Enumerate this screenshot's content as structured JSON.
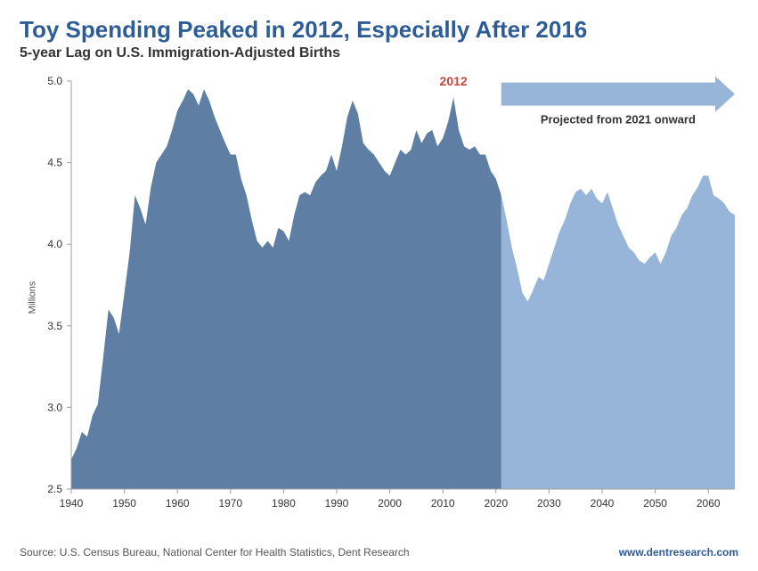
{
  "header": {
    "title": "Toy Spending Peaked in 2012, Especially After 2016",
    "subtitle": "5-year Lag on U.S. Immigration-Adjusted  Births"
  },
  "chart": {
    "type": "area",
    "ylabel": "Millions",
    "ylim": [
      2.5,
      5.0
    ],
    "ytick_step": 0.5,
    "xlim": [
      1940,
      2065
    ],
    "xtick_start": 1940,
    "xtick_step": 10,
    "xtick_end": 2060,
    "tick_fontsize": 12,
    "tick_color": "#333333",
    "axis_color": "#9aa0a6",
    "axis_width": 1,
    "background_color": "#ffffff",
    "split_year": 2021,
    "historical_color": "#5e7ea3",
    "projected_color": "#97b5d9",
    "annotation": {
      "label": "2012",
      "year": 2012,
      "color": "#c2463a",
      "fontsize": 14,
      "fontweight": "700"
    },
    "projection_label": {
      "text": "Projected from 2021 onward",
      "color": "#333333",
      "fontsize": 13,
      "fontweight": "700"
    },
    "arrow": {
      "color": "#97b5d9",
      "y_value": 4.92
    },
    "series": [
      {
        "x": 1940,
        "y": 2.68
      },
      {
        "x": 1941,
        "y": 2.75
      },
      {
        "x": 1942,
        "y": 2.85
      },
      {
        "x": 1943,
        "y": 2.82
      },
      {
        "x": 1944,
        "y": 2.95
      },
      {
        "x": 1945,
        "y": 3.02
      },
      {
        "x": 1946,
        "y": 3.3
      },
      {
        "x": 1947,
        "y": 3.6
      },
      {
        "x": 1948,
        "y": 3.55
      },
      {
        "x": 1949,
        "y": 3.45
      },
      {
        "x": 1950,
        "y": 3.7
      },
      {
        "x": 1951,
        "y": 3.95
      },
      {
        "x": 1952,
        "y": 4.3
      },
      {
        "x": 1953,
        "y": 4.22
      },
      {
        "x": 1954,
        "y": 4.12
      },
      {
        "x": 1955,
        "y": 4.35
      },
      {
        "x": 1956,
        "y": 4.5
      },
      {
        "x": 1957,
        "y": 4.55
      },
      {
        "x": 1958,
        "y": 4.6
      },
      {
        "x": 1959,
        "y": 4.7
      },
      {
        "x": 1960,
        "y": 4.82
      },
      {
        "x": 1961,
        "y": 4.88
      },
      {
        "x": 1962,
        "y": 4.95
      },
      {
        "x": 1963,
        "y": 4.92
      },
      {
        "x": 1964,
        "y": 4.85
      },
      {
        "x": 1965,
        "y": 4.95
      },
      {
        "x": 1966,
        "y": 4.88
      },
      {
        "x": 1967,
        "y": 4.78
      },
      {
        "x": 1968,
        "y": 4.7
      },
      {
        "x": 1969,
        "y": 4.62
      },
      {
        "x": 1970,
        "y": 4.55
      },
      {
        "x": 1971,
        "y": 4.55
      },
      {
        "x": 1972,
        "y": 4.4
      },
      {
        "x": 1973,
        "y": 4.3
      },
      {
        "x": 1974,
        "y": 4.15
      },
      {
        "x": 1975,
        "y": 4.02
      },
      {
        "x": 1976,
        "y": 3.98
      },
      {
        "x": 1977,
        "y": 4.02
      },
      {
        "x": 1978,
        "y": 3.98
      },
      {
        "x": 1979,
        "y": 4.1
      },
      {
        "x": 1980,
        "y": 4.08
      },
      {
        "x": 1981,
        "y": 4.02
      },
      {
        "x": 1982,
        "y": 4.18
      },
      {
        "x": 1983,
        "y": 4.3
      },
      {
        "x": 1984,
        "y": 4.32
      },
      {
        "x": 1985,
        "y": 4.3
      },
      {
        "x": 1986,
        "y": 4.38
      },
      {
        "x": 1987,
        "y": 4.42
      },
      {
        "x": 1988,
        "y": 4.45
      },
      {
        "x": 1989,
        "y": 4.55
      },
      {
        "x": 1990,
        "y": 4.45
      },
      {
        "x": 1991,
        "y": 4.6
      },
      {
        "x": 1992,
        "y": 4.78
      },
      {
        "x": 1993,
        "y": 4.88
      },
      {
        "x": 1994,
        "y": 4.8
      },
      {
        "x": 1995,
        "y": 4.62
      },
      {
        "x": 1996,
        "y": 4.58
      },
      {
        "x": 1997,
        "y": 4.55
      },
      {
        "x": 1998,
        "y": 4.5
      },
      {
        "x": 1999,
        "y": 4.45
      },
      {
        "x": 2000,
        "y": 4.42
      },
      {
        "x": 2001,
        "y": 4.5
      },
      {
        "x": 2002,
        "y": 4.58
      },
      {
        "x": 2003,
        "y": 4.55
      },
      {
        "x": 2004,
        "y": 4.58
      },
      {
        "x": 2005,
        "y": 4.7
      },
      {
        "x": 2006,
        "y": 4.62
      },
      {
        "x": 2007,
        "y": 4.68
      },
      {
        "x": 2008,
        "y": 4.7
      },
      {
        "x": 2009,
        "y": 4.6
      },
      {
        "x": 2010,
        "y": 4.65
      },
      {
        "x": 2011,
        "y": 4.75
      },
      {
        "x": 2012,
        "y": 4.9
      },
      {
        "x": 2013,
        "y": 4.7
      },
      {
        "x": 2014,
        "y": 4.6
      },
      {
        "x": 2015,
        "y": 4.58
      },
      {
        "x": 2016,
        "y": 4.6
      },
      {
        "x": 2017,
        "y": 4.55
      },
      {
        "x": 2018,
        "y": 4.55
      },
      {
        "x": 2019,
        "y": 4.45
      },
      {
        "x": 2020,
        "y": 4.4
      },
      {
        "x": 2021,
        "y": 4.3
      },
      {
        "x": 2022,
        "y": 4.15
      },
      {
        "x": 2023,
        "y": 3.98
      },
      {
        "x": 2024,
        "y": 3.85
      },
      {
        "x": 2025,
        "y": 3.7
      },
      {
        "x": 2026,
        "y": 3.65
      },
      {
        "x": 2027,
        "y": 3.72
      },
      {
        "x": 2028,
        "y": 3.8
      },
      {
        "x": 2029,
        "y": 3.78
      },
      {
        "x": 2030,
        "y": 3.88
      },
      {
        "x": 2031,
        "y": 3.98
      },
      {
        "x": 2032,
        "y": 4.08
      },
      {
        "x": 2033,
        "y": 4.15
      },
      {
        "x": 2034,
        "y": 4.25
      },
      {
        "x": 2035,
        "y": 4.32
      },
      {
        "x": 2036,
        "y": 4.34
      },
      {
        "x": 2037,
        "y": 4.3
      },
      {
        "x": 2038,
        "y": 4.34
      },
      {
        "x": 2039,
        "y": 4.28
      },
      {
        "x": 2040,
        "y": 4.25
      },
      {
        "x": 2041,
        "y": 4.32
      },
      {
        "x": 2042,
        "y": 4.22
      },
      {
        "x": 2043,
        "y": 4.12
      },
      {
        "x": 2044,
        "y": 4.05
      },
      {
        "x": 2045,
        "y": 3.98
      },
      {
        "x": 2046,
        "y": 3.95
      },
      {
        "x": 2047,
        "y": 3.9
      },
      {
        "x": 2048,
        "y": 3.88
      },
      {
        "x": 2049,
        "y": 3.92
      },
      {
        "x": 2050,
        "y": 3.95
      },
      {
        "x": 2051,
        "y": 3.88
      },
      {
        "x": 2052,
        "y": 3.95
      },
      {
        "x": 2053,
        "y": 4.05
      },
      {
        "x": 2054,
        "y": 4.1
      },
      {
        "x": 2055,
        "y": 4.18
      },
      {
        "x": 2056,
        "y": 4.22
      },
      {
        "x": 2057,
        "y": 4.3
      },
      {
        "x": 2058,
        "y": 4.35
      },
      {
        "x": 2059,
        "y": 4.42
      },
      {
        "x": 2060,
        "y": 4.42
      },
      {
        "x": 2061,
        "y": 4.3
      },
      {
        "x": 2062,
        "y": 4.28
      },
      {
        "x": 2063,
        "y": 4.25
      },
      {
        "x": 2064,
        "y": 4.2
      },
      {
        "x": 2065,
        "y": 4.18
      }
    ]
  },
  "footer": {
    "source": "Source: U.S. Census Bureau, National Center for Health Statistics, Dent Research",
    "site": "www.dentresearch.com"
  }
}
